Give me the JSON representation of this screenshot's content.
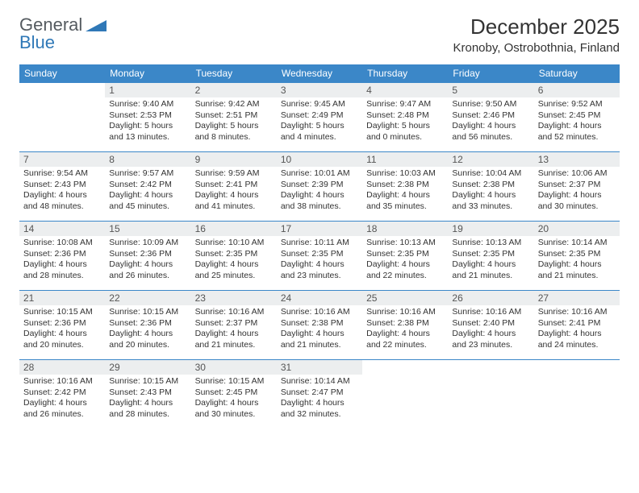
{
  "brand": {
    "general": "General",
    "blue": "Blue"
  },
  "title": "December 2025",
  "location": "Kronoby, Ostrobothnia, Finland",
  "colors": {
    "header_bg": "#3b87c8",
    "daynum_bg": "#eceeef",
    "brand_blue": "#2f78b7"
  },
  "weekdays": [
    "Sunday",
    "Monday",
    "Tuesday",
    "Wednesday",
    "Thursday",
    "Friday",
    "Saturday"
  ],
  "weeks": [
    [
      {
        "n": "",
        "lines": []
      },
      {
        "n": "1",
        "lines": [
          "Sunrise: 9:40 AM",
          "Sunset: 2:53 PM",
          "Daylight: 5 hours",
          "and 13 minutes."
        ]
      },
      {
        "n": "2",
        "lines": [
          "Sunrise: 9:42 AM",
          "Sunset: 2:51 PM",
          "Daylight: 5 hours",
          "and 8 minutes."
        ]
      },
      {
        "n": "3",
        "lines": [
          "Sunrise: 9:45 AM",
          "Sunset: 2:49 PM",
          "Daylight: 5 hours",
          "and 4 minutes."
        ]
      },
      {
        "n": "4",
        "lines": [
          "Sunrise: 9:47 AM",
          "Sunset: 2:48 PM",
          "Daylight: 5 hours",
          "and 0 minutes."
        ]
      },
      {
        "n": "5",
        "lines": [
          "Sunrise: 9:50 AM",
          "Sunset: 2:46 PM",
          "Daylight: 4 hours",
          "and 56 minutes."
        ]
      },
      {
        "n": "6",
        "lines": [
          "Sunrise: 9:52 AM",
          "Sunset: 2:45 PM",
          "Daylight: 4 hours",
          "and 52 minutes."
        ]
      }
    ],
    [
      {
        "n": "7",
        "lines": [
          "Sunrise: 9:54 AM",
          "Sunset: 2:43 PM",
          "Daylight: 4 hours",
          "and 48 minutes."
        ]
      },
      {
        "n": "8",
        "lines": [
          "Sunrise: 9:57 AM",
          "Sunset: 2:42 PM",
          "Daylight: 4 hours",
          "and 45 minutes."
        ]
      },
      {
        "n": "9",
        "lines": [
          "Sunrise: 9:59 AM",
          "Sunset: 2:41 PM",
          "Daylight: 4 hours",
          "and 41 minutes."
        ]
      },
      {
        "n": "10",
        "lines": [
          "Sunrise: 10:01 AM",
          "Sunset: 2:39 PM",
          "Daylight: 4 hours",
          "and 38 minutes."
        ]
      },
      {
        "n": "11",
        "lines": [
          "Sunrise: 10:03 AM",
          "Sunset: 2:38 PM",
          "Daylight: 4 hours",
          "and 35 minutes."
        ]
      },
      {
        "n": "12",
        "lines": [
          "Sunrise: 10:04 AM",
          "Sunset: 2:38 PM",
          "Daylight: 4 hours",
          "and 33 minutes."
        ]
      },
      {
        "n": "13",
        "lines": [
          "Sunrise: 10:06 AM",
          "Sunset: 2:37 PM",
          "Daylight: 4 hours",
          "and 30 minutes."
        ]
      }
    ],
    [
      {
        "n": "14",
        "lines": [
          "Sunrise: 10:08 AM",
          "Sunset: 2:36 PM",
          "Daylight: 4 hours",
          "and 28 minutes."
        ]
      },
      {
        "n": "15",
        "lines": [
          "Sunrise: 10:09 AM",
          "Sunset: 2:36 PM",
          "Daylight: 4 hours",
          "and 26 minutes."
        ]
      },
      {
        "n": "16",
        "lines": [
          "Sunrise: 10:10 AM",
          "Sunset: 2:35 PM",
          "Daylight: 4 hours",
          "and 25 minutes."
        ]
      },
      {
        "n": "17",
        "lines": [
          "Sunrise: 10:11 AM",
          "Sunset: 2:35 PM",
          "Daylight: 4 hours",
          "and 23 minutes."
        ]
      },
      {
        "n": "18",
        "lines": [
          "Sunrise: 10:13 AM",
          "Sunset: 2:35 PM",
          "Daylight: 4 hours",
          "and 22 minutes."
        ]
      },
      {
        "n": "19",
        "lines": [
          "Sunrise: 10:13 AM",
          "Sunset: 2:35 PM",
          "Daylight: 4 hours",
          "and 21 minutes."
        ]
      },
      {
        "n": "20",
        "lines": [
          "Sunrise: 10:14 AM",
          "Sunset: 2:35 PM",
          "Daylight: 4 hours",
          "and 21 minutes."
        ]
      }
    ],
    [
      {
        "n": "21",
        "lines": [
          "Sunrise: 10:15 AM",
          "Sunset: 2:36 PM",
          "Daylight: 4 hours",
          "and 20 minutes."
        ]
      },
      {
        "n": "22",
        "lines": [
          "Sunrise: 10:15 AM",
          "Sunset: 2:36 PM",
          "Daylight: 4 hours",
          "and 20 minutes."
        ]
      },
      {
        "n": "23",
        "lines": [
          "Sunrise: 10:16 AM",
          "Sunset: 2:37 PM",
          "Daylight: 4 hours",
          "and 21 minutes."
        ]
      },
      {
        "n": "24",
        "lines": [
          "Sunrise: 10:16 AM",
          "Sunset: 2:38 PM",
          "Daylight: 4 hours",
          "and 21 minutes."
        ]
      },
      {
        "n": "25",
        "lines": [
          "Sunrise: 10:16 AM",
          "Sunset: 2:38 PM",
          "Daylight: 4 hours",
          "and 22 minutes."
        ]
      },
      {
        "n": "26",
        "lines": [
          "Sunrise: 10:16 AM",
          "Sunset: 2:40 PM",
          "Daylight: 4 hours",
          "and 23 minutes."
        ]
      },
      {
        "n": "27",
        "lines": [
          "Sunrise: 10:16 AM",
          "Sunset: 2:41 PM",
          "Daylight: 4 hours",
          "and 24 minutes."
        ]
      }
    ],
    [
      {
        "n": "28",
        "lines": [
          "Sunrise: 10:16 AM",
          "Sunset: 2:42 PM",
          "Daylight: 4 hours",
          "and 26 minutes."
        ]
      },
      {
        "n": "29",
        "lines": [
          "Sunrise: 10:15 AM",
          "Sunset: 2:43 PM",
          "Daylight: 4 hours",
          "and 28 minutes."
        ]
      },
      {
        "n": "30",
        "lines": [
          "Sunrise: 10:15 AM",
          "Sunset: 2:45 PM",
          "Daylight: 4 hours",
          "and 30 minutes."
        ]
      },
      {
        "n": "31",
        "lines": [
          "Sunrise: 10:14 AM",
          "Sunset: 2:47 PM",
          "Daylight: 4 hours",
          "and 32 minutes."
        ]
      },
      {
        "n": "",
        "lines": []
      },
      {
        "n": "",
        "lines": []
      },
      {
        "n": "",
        "lines": []
      }
    ]
  ]
}
